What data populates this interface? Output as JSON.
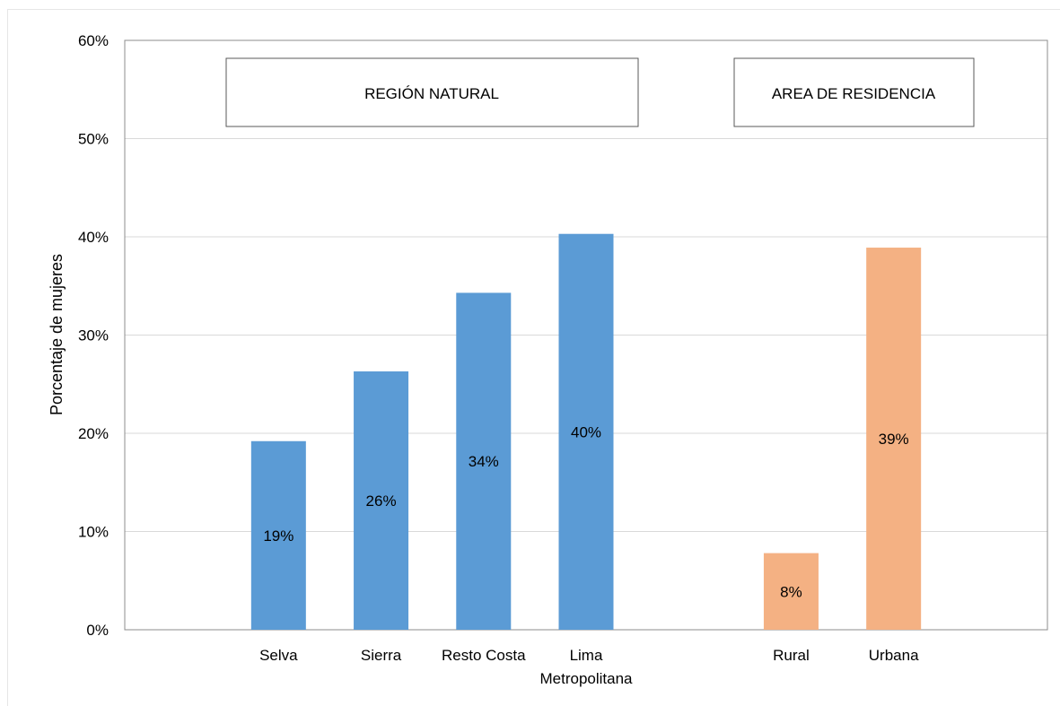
{
  "chart_data": {
    "type": "bar",
    "ylabel": "Porcentaje de mujeres",
    "ylim": [
      0,
      60
    ],
    "yticks": [
      "0%",
      "10%",
      "20%",
      "30%",
      "40%",
      "50%",
      "60%"
    ],
    "grid": true,
    "groups": [
      {
        "label": "REGIÓN NATURAL",
        "color": "#5b9bd5",
        "bars": [
          {
            "category": [
              "Selva"
            ],
            "value": 19.2,
            "label": "19%"
          },
          {
            "category": [
              "Sierra"
            ],
            "value": 26.3,
            "label": "26%"
          },
          {
            "category": [
              "Resto Costa"
            ],
            "value": 34.3,
            "label": "34%"
          },
          {
            "category": [
              "Lima",
              "Metropolitana"
            ],
            "value": 40.3,
            "label": "40%"
          }
        ]
      },
      {
        "label": "AREA DE RESIDENCIA",
        "color": "#f4b183",
        "bars": [
          {
            "category": [
              "Rural"
            ],
            "value": 7.8,
            "label": "8%"
          },
          {
            "category": [
              "Urbana"
            ],
            "value": 38.9,
            "label": "39%"
          }
        ]
      }
    ]
  }
}
